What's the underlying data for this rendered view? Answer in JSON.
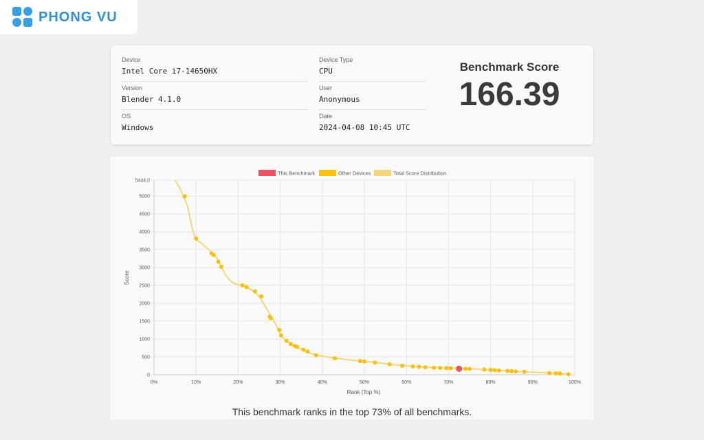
{
  "brand": {
    "logo_text": "PHONG VU"
  },
  "info": {
    "device_label": "Device",
    "device": "Intel Core i7-14650HX",
    "version_label": "Version",
    "version": "Blender 4.1.0",
    "os_label": "OS",
    "os": "Windows",
    "device_type_label": "Device Type",
    "device_type": "CPU",
    "user_label": "User",
    "user": "Anonymous",
    "date_label": "Date",
    "date": "2024-04-08 10:45 UTC"
  },
  "score": {
    "title": "Benchmark Score",
    "value": "166.39"
  },
  "rank_text": "This benchmark ranks in the top 73% of all benchmarks.",
  "chart_data": {
    "type": "line",
    "xlabel": "Rank (Top %)",
    "ylabel": "Score",
    "xlim": [
      0,
      100
    ],
    "ylim": [
      0,
      5444
    ],
    "x_ticks": [
      "0%",
      "10%",
      "20%",
      "30%",
      "40%",
      "50%",
      "60%",
      "70%",
      "80%",
      "90%",
      "100%"
    ],
    "y_ticks": [
      "0",
      "500",
      "1000",
      "1500",
      "2000",
      "2500",
      "3000",
      "3500",
      "4000",
      "4500",
      "5000",
      "5444.0"
    ],
    "grid": true,
    "legend_position": "top",
    "legend": [
      "This Benchmark",
      "Other Devices",
      "Total Score Distribution"
    ],
    "colors": {
      "this_benchmark": "#f0515f",
      "other_devices": "#fbbf0e",
      "distribution": "#f6d57a"
    },
    "distribution": {
      "name": "Total Score Distribution",
      "points": [
        [
          5,
          5444
        ],
        [
          6,
          5250
        ],
        [
          7,
          4980
        ],
        [
          8,
          4700
        ],
        [
          9,
          4150
        ],
        [
          10,
          3800
        ],
        [
          11,
          3700
        ],
        [
          12,
          3600
        ],
        [
          13,
          3500
        ],
        [
          14,
          3380
        ],
        [
          15,
          3250
        ],
        [
          16,
          3020
        ],
        [
          17,
          2800
        ],
        [
          18,
          2650
        ],
        [
          19,
          2560
        ],
        [
          20,
          2520
        ],
        [
          21,
          2490
        ],
        [
          22,
          2440
        ],
        [
          23,
          2380
        ],
        [
          24,
          2310
        ],
        [
          25,
          2190
        ],
        [
          26,
          2000
        ],
        [
          27,
          1800
        ],
        [
          28,
          1600
        ],
        [
          29,
          1400
        ],
        [
          30,
          1150
        ],
        [
          31,
          1000
        ],
        [
          32,
          900
        ],
        [
          33,
          820
        ],
        [
          34,
          760
        ],
        [
          35,
          710
        ],
        [
          36,
          650
        ],
        [
          38,
          570
        ],
        [
          40,
          520
        ],
        [
          43,
          460
        ],
        [
          46,
          420
        ],
        [
          50,
          370
        ],
        [
          53,
          340
        ],
        [
          56,
          290
        ],
        [
          60,
          250
        ],
        [
          65,
          210
        ],
        [
          70,
          190
        ],
        [
          75,
          170
        ],
        [
          80,
          130
        ],
        [
          85,
          100
        ],
        [
          90,
          70
        ],
        [
          95,
          40
        ],
        [
          99,
          10
        ]
      ]
    },
    "other_devices": {
      "name": "Other Devices",
      "points": [
        [
          7.3,
          4990
        ],
        [
          10,
          3810
        ],
        [
          13.7,
          3390
        ],
        [
          14.2,
          3350
        ],
        [
          15.3,
          3160
        ],
        [
          16,
          3020
        ],
        [
          21,
          2500
        ],
        [
          22,
          2450
        ],
        [
          24,
          2330
        ],
        [
          25.5,
          2190
        ],
        [
          27.5,
          1620
        ],
        [
          27.8,
          1580
        ],
        [
          29.8,
          1250
        ],
        [
          30.2,
          1100
        ],
        [
          31.5,
          950
        ],
        [
          32.5,
          860
        ],
        [
          33.5,
          800
        ],
        [
          34,
          780
        ],
        [
          35.5,
          700
        ],
        [
          36.5,
          650
        ],
        [
          38.5,
          540
        ],
        [
          43,
          460
        ],
        [
          49,
          380
        ],
        [
          50,
          370
        ],
        [
          52.5,
          340
        ],
        [
          56,
          290
        ],
        [
          59,
          250
        ],
        [
          61.5,
          230
        ],
        [
          63,
          220
        ],
        [
          64.5,
          210
        ],
        [
          66.5,
          195
        ],
        [
          68,
          190
        ],
        [
          69.5,
          185
        ],
        [
          70.5,
          180
        ],
        [
          74,
          165
        ],
        [
          75,
          160
        ],
        [
          78.5,
          145
        ],
        [
          80,
          135
        ],
        [
          81,
          125
        ],
        [
          82,
          118
        ],
        [
          84,
          105
        ],
        [
          85,
          98
        ],
        [
          86,
          90
        ],
        [
          88,
          80
        ],
        [
          94,
          45
        ],
        [
          95.5,
          38
        ],
        [
          96.5,
          32
        ],
        [
          98.5,
          12
        ]
      ]
    },
    "this_benchmark": {
      "name": "This Benchmark",
      "x": 72.5,
      "y": 166.39
    }
  }
}
